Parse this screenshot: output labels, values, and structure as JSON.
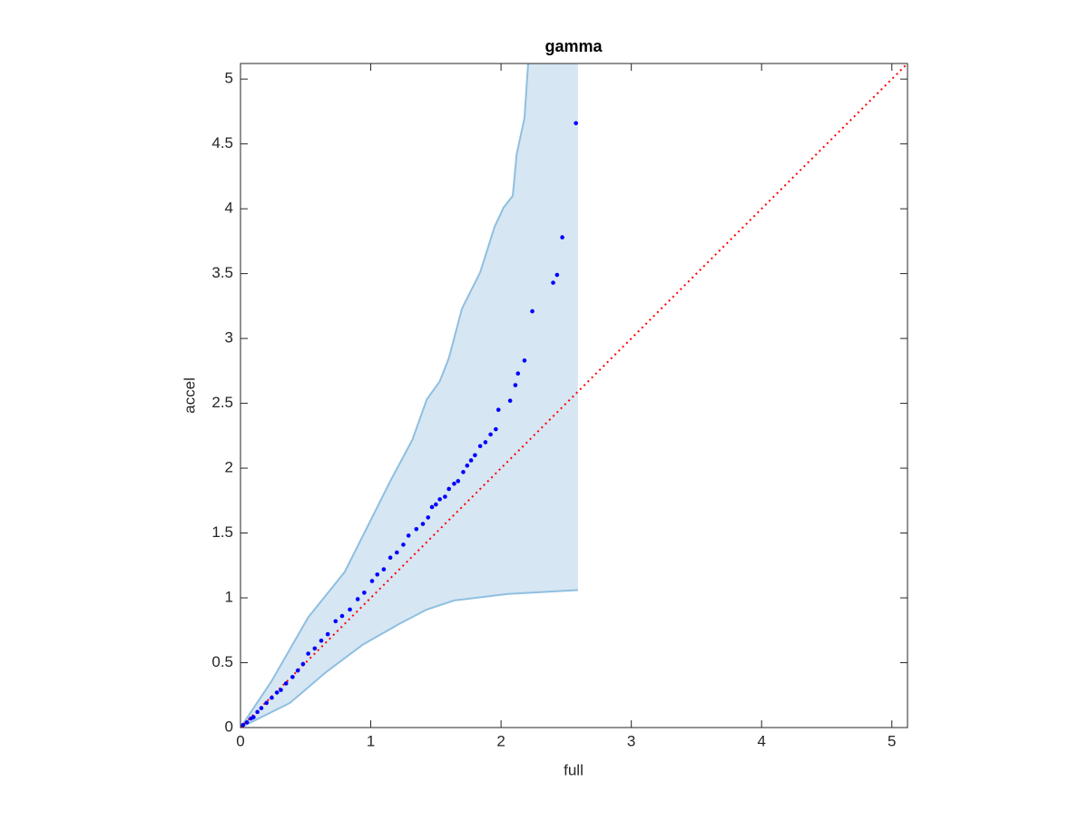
{
  "chart_data": {
    "type": "scatter",
    "title": "gamma",
    "x_label": "full",
    "y_label": "accel",
    "xlim": [
      0,
      5.12
    ],
    "ylim": [
      0,
      5.12
    ],
    "xticks": [
      0,
      1,
      2,
      3,
      4,
      5
    ],
    "yticks": [
      0,
      0.5,
      1,
      1.5,
      2,
      2.5,
      3,
      3.5,
      4,
      4.5,
      5
    ],
    "grid": false,
    "points": {
      "color": "#0000ff",
      "x": [
        0.02,
        0.05,
        0.08,
        0.1,
        0.13,
        0.16,
        0.2,
        0.24,
        0.28,
        0.31,
        0.35,
        0.4,
        0.44,
        0.48,
        0.52,
        0.57,
        0.62,
        0.67,
        0.73,
        0.78,
        0.84,
        0.9,
        0.95,
        1.01,
        1.05,
        1.1,
        1.15,
        1.2,
        1.25,
        1.29,
        1.35,
        1.4,
        1.44,
        1.47,
        1.5,
        1.53,
        1.57,
        1.6,
        1.64,
        1.67,
        1.71,
        1.74,
        1.77,
        1.8,
        1.84,
        1.88,
        1.92,
        1.96,
        1.98,
        2.07,
        2.11,
        2.13,
        2.18,
        2.24,
        2.4,
        2.43,
        2.47,
        2.575
      ],
      "y": [
        0.02,
        0.04,
        0.07,
        0.08,
        0.12,
        0.15,
        0.19,
        0.23,
        0.27,
        0.29,
        0.34,
        0.39,
        0.44,
        0.49,
        0.57,
        0.61,
        0.67,
        0.72,
        0.82,
        0.86,
        0.91,
        0.99,
        1.04,
        1.13,
        1.18,
        1.22,
        1.31,
        1.35,
        1.41,
        1.48,
        1.53,
        1.57,
        1.62,
        1.7,
        1.72,
        1.76,
        1.78,
        1.84,
        1.88,
        1.9,
        1.97,
        2.02,
        2.06,
        2.1,
        2.17,
        2.2,
        2.26,
        2.3,
        2.45,
        2.52,
        2.64,
        2.73,
        2.83,
        3.21,
        3.43,
        3.49,
        3.78,
        4.66
      ]
    },
    "band": {
      "color": "#d6e6f3",
      "edge_color": "#8fbfe0",
      "upper": {
        "x": [
          0,
          0.24,
          0.52,
          0.8,
          1.01,
          1.15,
          1.32,
          1.43,
          1.53,
          1.6,
          1.7,
          1.84,
          1.95,
          2.02,
          2.09,
          2.12,
          2.18,
          2.22,
          2.59
        ],
        "y": [
          0,
          0.36,
          0.85,
          1.2,
          1.62,
          1.9,
          2.22,
          2.53,
          2.67,
          2.85,
          3.23,
          3.51,
          3.86,
          4.01,
          4.1,
          4.42,
          4.7,
          5.3,
          5.3
        ]
      },
      "lower": {
        "x": [
          0,
          0.38,
          0.66,
          0.94,
          1.22,
          1.43,
          1.64,
          2.05,
          2.59
        ],
        "y": [
          0,
          0.19,
          0.43,
          0.64,
          0.8,
          0.91,
          0.98,
          1.03,
          1.06
        ]
      }
    },
    "reference_line": {
      "color": "#ff0000",
      "x": [
        0,
        5.12
      ],
      "y": [
        0,
        5.12
      ]
    }
  }
}
